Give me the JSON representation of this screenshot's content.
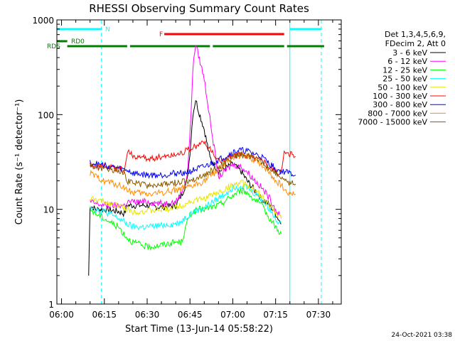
{
  "timestamp": "24-Oct-2021 03:38",
  "chart_data": {
    "type": "line",
    "title": "RHESSI Observing Summary Count Rates",
    "xlabel": "Start Time (13-Jun-14 05:58:22)",
    "ylabel": "Count Rate (s⁻¹ detector⁻¹)",
    "xlim": [
      "05:58:22",
      "07:38:00"
    ],
    "ylim": [
      1,
      1000
    ],
    "yscale": "log",
    "x_tick_labels": [
      "06:00",
      "06:15",
      "06:30",
      "06:45",
      "07:00",
      "07:15",
      "07:30"
    ],
    "y_tick_labels": [
      "1",
      "10",
      "100",
      "1000"
    ],
    "grid": false,
    "legend_header": [
      "Det 1,3,4,5,6,9,",
      "FDecim 2, Att 0"
    ],
    "legend_position": "right",
    "series": [
      {
        "name": "3 - 6 keV",
        "color": "#000000",
        "x": [
          "06:09:30",
          "06:10",
          "06:12",
          "06:15",
          "06:20",
          "06:22",
          "06:23",
          "06:25",
          "06:30",
          "06:35",
          "06:40",
          "06:42",
          "06:44",
          "06:45",
          "06:46",
          "06:47",
          "06:48",
          "06:50",
          "06:52",
          "06:55",
          "07:00",
          "07:03",
          "07:05",
          "07:10",
          "07:13",
          "07:15",
          "07:17"
        ],
        "y": [
          2,
          11,
          10,
          10,
          9.5,
          9,
          11,
          11,
          11,
          10.5,
          11,
          14,
          20,
          40,
          100,
          145,
          110,
          70,
          35,
          25,
          30,
          25,
          20,
          13,
          11,
          9,
          7
        ]
      },
      {
        "name": "6 - 12 keV",
        "color": "#ff00ff",
        "x": [
          "06:10",
          "06:12",
          "06:15",
          "06:20",
          "06:22",
          "06:23",
          "06:25",
          "06:30",
          "06:35",
          "06:40",
          "06:42",
          "06:44",
          "06:45",
          "06:46",
          "06:47",
          "06:48",
          "06:50",
          "06:52",
          "06:55",
          "07:00",
          "07:03",
          "07:05",
          "07:10",
          "07:13",
          "07:15",
          "07:17"
        ],
        "y": [
          12,
          11.5,
          11,
          11,
          11,
          12,
          12,
          12,
          11.5,
          12,
          15,
          22,
          60,
          300,
          560,
          420,
          240,
          90,
          22,
          30,
          28,
          25,
          17,
          13,
          10,
          8
        ]
      },
      {
        "name": "12 - 25 keV",
        "color": "#00ff00",
        "x": [
          "06:10",
          "06:12",
          "06:15",
          "06:20",
          "06:23",
          "06:25",
          "06:30",
          "06:35",
          "06:40",
          "06:42",
          "06:45",
          "06:48",
          "06:50",
          "06:55",
          "07:00",
          "07:03",
          "07:05",
          "07:10",
          "07:13",
          "07:15",
          "07:17"
        ],
        "y": [
          10,
          9,
          8,
          6.5,
          5,
          4.5,
          4,
          4.2,
          4.5,
          4.5,
          9,
          10,
          10,
          11,
          14,
          16,
          15,
          11,
          8,
          6.5,
          5.5
        ]
      },
      {
        "name": "25 - 50 keV",
        "color": "#00ffff",
        "x": [
          "06:10",
          "06:12",
          "06:15",
          "06:20",
          "06:23",
          "06:25",
          "06:30",
          "06:35",
          "06:40",
          "06:42",
          "06:45",
          "06:50",
          "06:55",
          "07:00",
          "07:03",
          "07:05",
          "07:10",
          "07:13",
          "07:15",
          "07:17"
        ],
        "y": [
          11,
          10,
          9.5,
          8,
          7,
          6.5,
          6.5,
          6.8,
          7,
          7.5,
          9,
          10.5,
          13,
          17,
          18,
          17,
          13,
          10,
          8,
          7
        ]
      },
      {
        "name": "50 - 100 keV",
        "color": "#e6e600",
        "x": [
          "06:10",
          "06:12",
          "06:15",
          "06:20",
          "06:23",
          "06:25",
          "06:30",
          "06:35",
          "06:40",
          "06:42",
          "06:45",
          "06:50",
          "06:55",
          "07:00",
          "07:03",
          "07:05",
          "07:10",
          "07:13",
          "07:15",
          "07:17"
        ],
        "y": [
          13,
          12.5,
          12,
          11,
          10,
          9.5,
          9.5,
          10,
          10.5,
          11,
          12,
          13,
          15,
          18,
          19,
          18,
          14,
          11,
          9,
          8
        ]
      },
      {
        "name": "100 - 300 keV",
        "color": "#ff0000",
        "x": [
          "06:10",
          "06:12",
          "06:15",
          "06:20",
          "06:22",
          "06:23",
          "06:25",
          "06:30",
          "06:35",
          "06:40",
          "06:42",
          "06:45",
          "06:48",
          "06:50",
          "06:55",
          "07:00",
          "07:02",
          "07:05",
          "07:10",
          "07:13",
          "07:15",
          "07:17",
          "07:18",
          "07:20",
          "07:22"
        ],
        "y": [
          30,
          29,
          28,
          27,
          26,
          40,
          37,
          34,
          36,
          38,
          40,
          43,
          48,
          52,
          32,
          36,
          38,
          37,
          33,
          28,
          25,
          24,
          40,
          38,
          36
        ]
      },
      {
        "name": "300 - 800 keV",
        "color": "#0000ff",
        "x": [
          "06:10",
          "06:12",
          "06:15",
          "06:20",
          "06:22",
          "06:23",
          "06:25",
          "06:30",
          "06:35",
          "06:40",
          "06:45",
          "06:48",
          "06:50",
          "06:55",
          "07:00",
          "07:02",
          "07:05",
          "07:10",
          "07:13",
          "07:15",
          "07:17",
          "07:18",
          "07:20",
          "07:22"
        ],
        "y": [
          31,
          30,
          29,
          27,
          26,
          26,
          24,
          23,
          23,
          24,
          25,
          27,
          28,
          33,
          40,
          42,
          41,
          36,
          30,
          27,
          25,
          25,
          24,
          23
        ]
      },
      {
        "name": "800 - 7000 keV",
        "color": "#ff8c00",
        "x": [
          "06:10",
          "06:12",
          "06:15",
          "06:20",
          "06:22",
          "06:23",
          "06:25",
          "06:30",
          "06:35",
          "06:40",
          "06:45",
          "06:50",
          "06:55",
          "07:00",
          "07:02",
          "07:05",
          "07:10",
          "07:13",
          "07:15",
          "07:17",
          "07:18",
          "07:20",
          "07:22"
        ],
        "y": [
          24,
          22,
          20,
          18,
          17,
          16,
          15,
          14.5,
          15,
          16,
          17,
          20,
          26,
          35,
          37,
          36,
          30,
          24,
          20,
          18,
          16,
          15,
          14.5
        ]
      },
      {
        "name": "7000 - 15000 keV",
        "color": "#8b5a00",
        "x": [
          "06:10",
          "06:12",
          "06:15",
          "06:20",
          "06:22",
          "06:23",
          "06:25",
          "06:30",
          "06:35",
          "06:40",
          "06:45",
          "06:50",
          "06:55",
          "07:00",
          "07:02",
          "07:05",
          "07:10",
          "07:13",
          "07:15",
          "07:17",
          "07:18",
          "07:20",
          "07:22"
        ],
        "y": [
          29,
          28,
          27,
          26,
          25,
          20,
          19,
          18,
          18,
          19,
          20,
          23,
          28,
          36,
          38,
          37,
          32,
          27,
          24,
          22,
          20,
          19,
          18.5
        ]
      }
    ],
    "flag_bars": [
      {
        "label": "N",
        "color": "#00ffff",
        "segments": [
          [
            "05:58:22",
            "06:14:00"
          ],
          [
            "07:20:00",
            "07:31:00"
          ]
        ]
      },
      {
        "label": "RD0",
        "color": "#008000",
        "segments": [
          [
            "05:58:22",
            "06:02:00"
          ]
        ]
      },
      {
        "label": "F",
        "color": "#ff0000",
        "segments": [
          [
            "06:36:00",
            "07:18:00"
          ]
        ]
      },
      {
        "label": "RDS",
        "color": "#008000",
        "segments": [
          [
            "06:02:00",
            "06:23:00"
          ],
          [
            "06:24:00",
            "06:52:00"
          ],
          [
            "06:53:00",
            "07:18:00"
          ],
          [
            "07:19:00",
            "07:32:00"
          ]
        ]
      }
    ],
    "v_lines": [
      {
        "x": "05:58:22",
        "style": "solid",
        "color": "#00ffff"
      },
      {
        "x": "06:14:00",
        "style": "dashed",
        "color": "#00ffff"
      },
      {
        "x": "07:20:00",
        "style": "solid",
        "color": "#00ffff"
      },
      {
        "x": "07:31:00",
        "style": "dashed",
        "color": "#00ffff"
      }
    ]
  }
}
